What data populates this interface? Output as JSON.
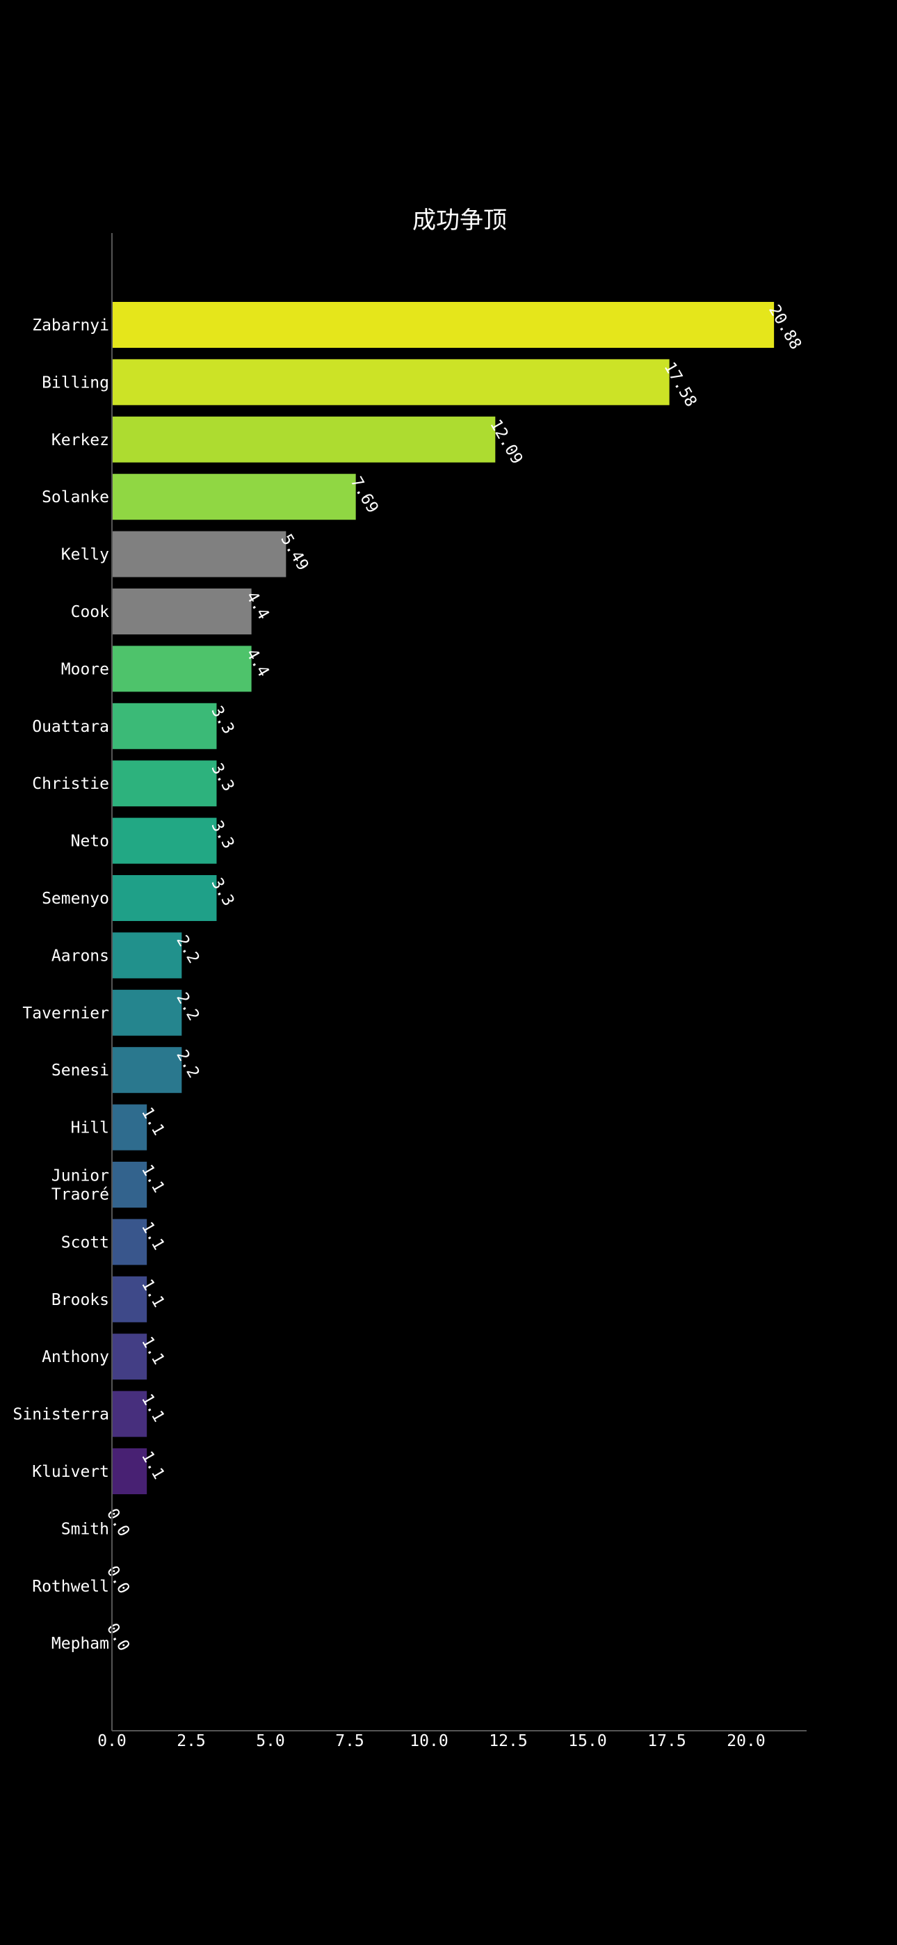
{
  "chart_data": {
    "type": "bar",
    "orientation": "horizontal",
    "title": "成功争顶",
    "xlabel": "",
    "ylabel": "",
    "xlim": [
      0,
      21.9
    ],
    "xticks": [
      0,
      2.5,
      5,
      7.5,
      10,
      12.5,
      15,
      17.5,
      20
    ],
    "xtick_labels": [
      "0.0",
      "2.5",
      "5.0",
      "7.5",
      "10.0",
      "12.5",
      "15.0",
      "17.5",
      "20.0"
    ],
    "grid": false,
    "categories": [
      "Zabarnyi",
      "Billing",
      "Kerkez",
      "Solanke",
      "Kelly",
      "Cook",
      "Moore",
      "Ouattara",
      "Christie",
      "Neto",
      "Semenyo",
      "Aarons",
      "Tavernier",
      "Senesi",
      "Hill",
      "Junior Traoré",
      "Scott",
      "Brooks",
      "Anthony",
      "Sinisterra",
      "Kluivert",
      "Smith",
      "Rothwell",
      "Mepham"
    ],
    "category_lines": [
      [
        "Zabarnyi"
      ],
      [
        "Billing"
      ],
      [
        "Kerkez"
      ],
      [
        "Solanke"
      ],
      [
        "Kelly"
      ],
      [
        "Cook"
      ],
      [
        "Moore"
      ],
      [
        "Ouattara"
      ],
      [
        "Christie"
      ],
      [
        "Neto"
      ],
      [
        "Semenyo"
      ],
      [
        "Aarons"
      ],
      [
        "Tavernier"
      ],
      [
        "Senesi"
      ],
      [
        "Hill"
      ],
      [
        "Junior",
        "Traoré"
      ],
      [
        "Scott"
      ],
      [
        "Brooks"
      ],
      [
        "Anthony"
      ],
      [
        "Sinisterra"
      ],
      [
        "Kluivert"
      ],
      [
        "Smith"
      ],
      [
        "Rothwell"
      ],
      [
        "Mepham"
      ]
    ],
    "values": [
      20.88,
      17.58,
      12.09,
      7.69,
      5.49,
      4.4,
      4.4,
      3.3,
      3.3,
      3.3,
      3.3,
      2.2,
      2.2,
      2.2,
      1.1,
      1.1,
      1.1,
      1.1,
      1.1,
      1.1,
      1.1,
      0.0,
      0.0,
      0.0
    ],
    "value_labels": [
      "20.88",
      "17.58",
      "12.09",
      "7.69",
      "5.49",
      "4.4",
      "4.4",
      "3.3",
      "3.3",
      "3.3",
      "3.3",
      "2.2",
      "2.2",
      "2.2",
      "1.1",
      "1.1",
      "1.1",
      "1.1",
      "1.1",
      "1.1",
      "1.1",
      "0.0",
      "0.0",
      "0.0"
    ],
    "colors": [
      "#e5e61b",
      "#cce326",
      "#addc30",
      "#90d743",
      "#808080",
      "#808080",
      "#4ec36b",
      "#3bba77",
      "#2db27d",
      "#22a884",
      "#1fa088",
      "#21918c",
      "#25858e",
      "#2a788e",
      "#2f6c8e",
      "#33638d",
      "#39568c",
      "#3e4989",
      "#433e85",
      "#472f7d",
      "#482173",
      "#440154",
      "#440154",
      "#440154"
    ]
  }
}
